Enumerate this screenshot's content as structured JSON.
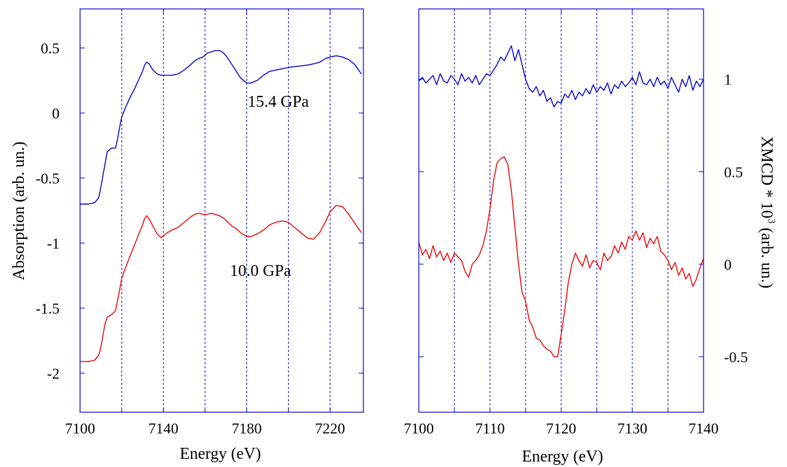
{
  "chart_data": [
    {
      "type": "line",
      "xlabel": "Energy (eV)",
      "ylabel": "Absorption (arb. un.)",
      "xlim": [
        7100,
        7236
      ],
      "ylim": [
        -2.3,
        0.8
      ],
      "xticks": [
        7100,
        7140,
        7180,
        7220
      ],
      "yticks": [
        0.5,
        0,
        -0.5,
        -1,
        -1.5,
        -2
      ],
      "ytick_labels": [
        "0.5",
        "0",
        "-0.5",
        "-1",
        "-1.5",
        "-2"
      ],
      "minor_xticks": [
        7120,
        7160,
        7200
      ],
      "grid": "vertical dashed at every 20 eV",
      "annotations": [
        {
          "text": "15.4 GPa",
          "x": 7173,
          "y": 0.13
        },
        {
          "text": "10.0 GPa",
          "x": 7169,
          "y": -1.3
        }
      ],
      "series": [
        {
          "color": "#0000cc",
          "x": [
            7100,
            7104,
            7107,
            7109,
            7110,
            7112,
            7113,
            7115,
            7117,
            7118,
            7119,
            7120,
            7122,
            7124,
            7126,
            7128,
            7130,
            7131,
            7132,
            7133,
            7135,
            7137,
            7139,
            7141,
            7144,
            7147,
            7150,
            7153,
            7155,
            7157,
            7159,
            7161,
            7163,
            7165,
            7167,
            7169,
            7171,
            7173,
            7175,
            7177,
            7180,
            7182,
            7185,
            7188,
            7191,
            7194,
            7197,
            7200,
            7205,
            7210,
            7215,
            7218,
            7220,
            7223,
            7226,
            7229,
            7232,
            7235
          ],
          "y": [
            -0.7,
            -0.7,
            -0.69,
            -0.65,
            -0.57,
            -0.39,
            -0.3,
            -0.27,
            -0.27,
            -0.2,
            -0.11,
            -0.03,
            0.05,
            0.12,
            0.18,
            0.25,
            0.32,
            0.37,
            0.39,
            0.38,
            0.33,
            0.3,
            0.29,
            0.29,
            0.29,
            0.3,
            0.33,
            0.37,
            0.4,
            0.42,
            0.43,
            0.46,
            0.47,
            0.48,
            0.48,
            0.46,
            0.42,
            0.37,
            0.32,
            0.27,
            0.23,
            0.23,
            0.25,
            0.29,
            0.32,
            0.33,
            0.34,
            0.35,
            0.36,
            0.37,
            0.39,
            0.42,
            0.43,
            0.44,
            0.43,
            0.41,
            0.37,
            0.3
          ]
        },
        {
          "color": "#ee0000",
          "x": [
            7100,
            7104,
            7107,
            7109,
            7110,
            7112,
            7113,
            7115,
            7117,
            7118,
            7119,
            7120,
            7122,
            7124,
            7126,
            7128,
            7130,
            7131,
            7132,
            7133,
            7135,
            7137,
            7139,
            7141,
            7144,
            7147,
            7150,
            7153,
            7155,
            7157,
            7159,
            7161,
            7163,
            7165,
            7167,
            7169,
            7171,
            7173,
            7175,
            7177,
            7180,
            7182,
            7185,
            7188,
            7191,
            7194,
            7197,
            7200,
            7203,
            7206,
            7209,
            7212,
            7215,
            7218,
            7220,
            7223,
            7226,
            7229,
            7232,
            7235
          ],
          "y": [
            -1.91,
            -1.91,
            -1.9,
            -1.86,
            -1.8,
            -1.62,
            -1.57,
            -1.55,
            -1.52,
            -1.44,
            -1.36,
            -1.27,
            -1.18,
            -1.1,
            -1.02,
            -0.94,
            -0.86,
            -0.81,
            -0.79,
            -0.81,
            -0.87,
            -0.93,
            -0.96,
            -0.93,
            -0.9,
            -0.88,
            -0.84,
            -0.8,
            -0.78,
            -0.77,
            -0.78,
            -0.78,
            -0.77,
            -0.78,
            -0.79,
            -0.81,
            -0.84,
            -0.87,
            -0.89,
            -0.92,
            -0.95,
            -0.95,
            -0.93,
            -0.9,
            -0.86,
            -0.84,
            -0.83,
            -0.84,
            -0.88,
            -0.92,
            -0.96,
            -0.97,
            -0.92,
            -0.83,
            -0.76,
            -0.71,
            -0.72,
            -0.78,
            -0.85,
            -0.92
          ]
        }
      ]
    },
    {
      "type": "line",
      "xlabel": "Energy (eV)",
      "ylabel": "XMCD * 10",
      "ylabel_superscript": "3",
      "ylabel_suffix": " (arb. un.)",
      "xlim": [
        7100,
        7140
      ],
      "ylim": [
        -0.8,
        1.38
      ],
      "xticks": [
        7100,
        7110,
        7120,
        7130,
        7140
      ],
      "minor_xticks": [
        7105,
        7115,
        7125,
        7135
      ],
      "yticks": [
        1,
        0.5,
        0,
        -0.5
      ],
      "ytick_labels": [
        "1",
        "0.5",
        "0",
        "-0.5"
      ],
      "grid": "vertical dashed at every 5 eV",
      "series": [
        {
          "color": "#0000cc",
          "x": [
            7100,
            7100.5,
            7101,
            7101.5,
            7102,
            7102.5,
            7103,
            7103.5,
            7104,
            7104.5,
            7105,
            7105.5,
            7106,
            7106.5,
            7107,
            7107.5,
            7108,
            7108.5,
            7109,
            7109.5,
            7110,
            7110.5,
            7111,
            7111.5,
            7112,
            7112.5,
            7113,
            7113.5,
            7114,
            7114.5,
            7115,
            7115.5,
            7116,
            7116.5,
            7117,
            7117.5,
            7118,
            7118.5,
            7119,
            7119.5,
            7120,
            7120.5,
            7121,
            7121.5,
            7122,
            7122.5,
            7123,
            7123.5,
            7124,
            7124.5,
            7125,
            7125.5,
            7126,
            7126.5,
            7127,
            7127.5,
            7128,
            7128.5,
            7129,
            7129.5,
            7130,
            7130.5,
            7131,
            7131.5,
            7132,
            7132.5,
            7133,
            7133.5,
            7134,
            7134.5,
            7135,
            7135.5,
            7136,
            7136.5,
            7137,
            7137.5,
            7138,
            7138.5,
            7139,
            7139.5,
            7140
          ],
          "y": [
            0.99,
            1.01,
            0.98,
            1.0,
            1.02,
            0.97,
            1.03,
            0.99,
            0.98,
            1.02,
            1.0,
            0.97,
            1.03,
            0.99,
            1.01,
            0.98,
            1.02,
            0.97,
            1.0,
            1.03,
            1.02,
            1.05,
            1.08,
            1.12,
            1.1,
            1.14,
            1.18,
            1.1,
            1.16,
            1.08,
            1.0,
            0.95,
            0.93,
            0.96,
            0.91,
            0.94,
            0.88,
            0.9,
            0.85,
            0.88,
            0.87,
            0.92,
            0.9,
            0.94,
            0.89,
            0.93,
            0.91,
            0.95,
            0.92,
            0.97,
            0.93,
            0.96,
            0.94,
            0.98,
            0.92,
            0.97,
            0.95,
            0.99,
            0.96,
            0.98,
            1.01,
            0.97,
            1.04,
            0.98,
            0.97,
            1.0,
            0.96,
            1.01,
            0.97,
            0.99,
            0.95,
            1.01,
            0.97,
            0.93,
            1.0,
            0.96,
            1.02,
            0.94,
            0.99,
            0.96,
            1.0
          ]
        },
        {
          "color": "#ee0000",
          "x": [
            7100,
            7100.5,
            7101,
            7101.5,
            7102,
            7102.5,
            7103,
            7103.5,
            7104,
            7104.5,
            7105,
            7105.5,
            7106,
            7106.5,
            7107,
            7107.5,
            7108,
            7108.5,
            7109,
            7109.5,
            7110,
            7110.5,
            7111,
            7111.5,
            7112,
            7112.5,
            7113,
            7113.5,
            7114,
            7114.5,
            7115,
            7115.5,
            7116,
            7116.5,
            7117,
            7117.5,
            7118,
            7118.5,
            7119,
            7119.5,
            7120,
            7120.5,
            7121,
            7121.5,
            7122,
            7122.5,
            7123,
            7123.5,
            7124,
            7124.5,
            7125,
            7125.5,
            7126,
            7126.5,
            7127,
            7127.5,
            7128,
            7128.5,
            7129,
            7129.5,
            7130,
            7130.5,
            7131,
            7131.5,
            7132,
            7132.5,
            7133,
            7133.5,
            7134,
            7134.5,
            7135,
            7135.5,
            7136,
            7136.5,
            7137,
            7137.5,
            7138,
            7138.5,
            7139,
            7139.5,
            7140
          ],
          "y": [
            0.12,
            0.05,
            0.08,
            0.03,
            0.1,
            0.04,
            0.07,
            0.02,
            0.06,
            0.01,
            0.06,
            0.04,
            0.02,
            -0.04,
            -0.07,
            0.0,
            0.02,
            0.05,
            0.1,
            0.18,
            0.3,
            0.45,
            0.55,
            0.57,
            0.58,
            0.54,
            0.4,
            0.2,
            0.0,
            -0.15,
            -0.2,
            -0.3,
            -0.34,
            -0.4,
            -0.41,
            -0.44,
            -0.46,
            -0.47,
            -0.5,
            -0.5,
            -0.38,
            -0.25,
            -0.1,
            0.0,
            0.06,
            0.02,
            -0.01,
            0.05,
            -0.02,
            0.02,
            0.01,
            -0.03,
            0.06,
            0.02,
            0.04,
            0.1,
            0.06,
            0.12,
            0.08,
            0.15,
            0.13,
            0.18,
            0.13,
            0.17,
            0.09,
            0.14,
            0.11,
            0.15,
            0.07,
            0.05,
            0.02,
            -0.03,
            0.01,
            -0.06,
            -0.02,
            -0.08,
            -0.05,
            -0.12,
            -0.08,
            -0.02,
            0.03
          ]
        }
      ]
    }
  ]
}
